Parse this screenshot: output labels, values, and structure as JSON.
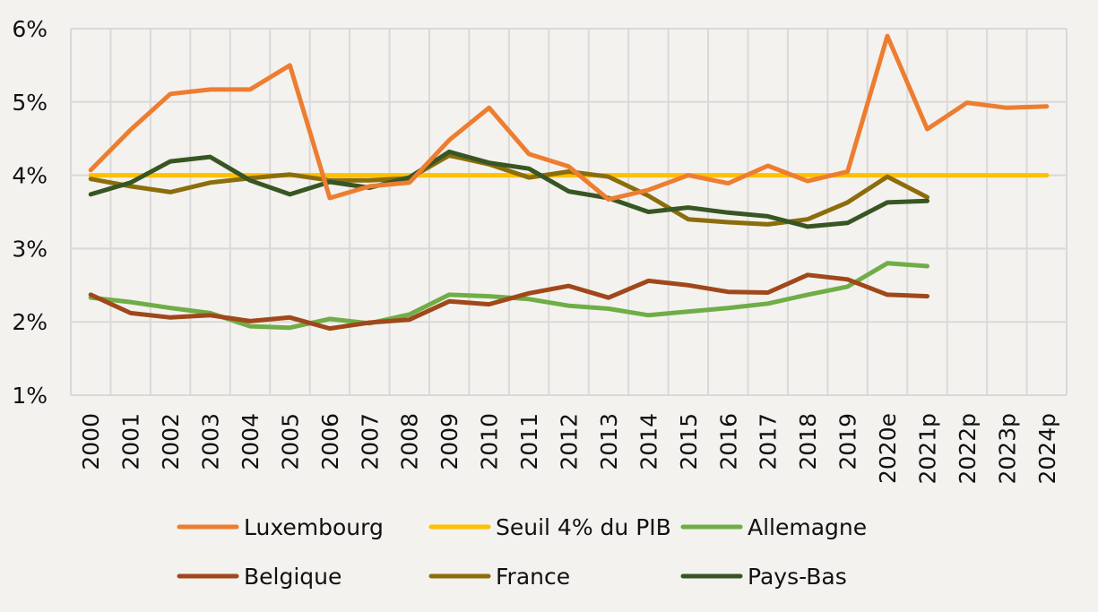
{
  "chart_data": {
    "type": "line",
    "title": "",
    "xlabel": "",
    "ylabel": "",
    "categories": [
      "2000",
      "2001",
      "2002",
      "2003",
      "2004",
      "2005",
      "2006",
      "2007",
      "2008",
      "2009",
      "2010",
      "2011",
      "2012",
      "2013",
      "2014",
      "2015",
      "2016",
      "2017",
      "2018",
      "2019",
      "2020e",
      "2021p",
      "2022p",
      "2023p",
      "2024p"
    ],
    "y_tick_labels": [
      "1%",
      "2%",
      "3%",
      "4%",
      "5%",
      "6%"
    ],
    "ylim": [
      1,
      6
    ],
    "grid": true,
    "legend_position": "bottom",
    "series": [
      {
        "name": "Luxembourg",
        "color": "#ed7d31",
        "values": [
          4.07,
          4.62,
          5.11,
          5.17,
          5.17,
          5.5,
          3.69,
          3.85,
          3.9,
          4.48,
          4.92,
          4.29,
          4.12,
          3.67,
          3.8,
          4.0,
          3.89,
          4.13,
          3.92,
          4.05,
          5.9,
          4.63,
          4.99,
          4.92,
          4.94
        ]
      },
      {
        "name": "Seuil 4% du PIB",
        "color": "#ffc000",
        "values": [
          4,
          4,
          4,
          4,
          4,
          4,
          4,
          4,
          4,
          4,
          4,
          4,
          4,
          4,
          4,
          4,
          4,
          4,
          4,
          4,
          4,
          4,
          4,
          4,
          4
        ]
      },
      {
        "name": "Allemagne",
        "color": "#70ad47",
        "values": [
          2.33,
          2.27,
          2.19,
          2.12,
          1.94,
          1.92,
          2.04,
          1.98,
          2.1,
          2.37,
          2.35,
          2.31,
          2.22,
          2.18,
          2.09,
          2.14,
          2.19,
          2.25,
          2.37,
          2.48,
          2.8,
          2.76,
          null,
          null,
          null
        ]
      },
      {
        "name": "Belgique",
        "color": "#a0481b",
        "values": [
          2.37,
          2.12,
          2.06,
          2.09,
          2.01,
          2.06,
          1.91,
          1.99,
          2.03,
          2.28,
          2.24,
          2.39,
          2.49,
          2.33,
          2.56,
          2.5,
          2.41,
          2.4,
          2.64,
          2.58,
          2.37,
          2.35,
          null,
          null,
          null
        ]
      },
      {
        "name": "France",
        "color": "#8c6d0c",
        "values": [
          3.95,
          3.85,
          3.77,
          3.9,
          3.96,
          4.01,
          3.93,
          3.93,
          3.96,
          4.27,
          4.15,
          3.97,
          4.05,
          3.98,
          3.72,
          3.4,
          3.36,
          3.33,
          3.4,
          3.63,
          3.98,
          3.7,
          null,
          null,
          null
        ]
      },
      {
        "name": "Pays-Bas",
        "color": "#375623",
        "values": [
          3.74,
          3.9,
          4.19,
          4.25,
          3.93,
          3.74,
          3.91,
          3.83,
          3.97,
          4.32,
          4.17,
          4.09,
          3.78,
          3.69,
          3.5,
          3.56,
          3.49,
          3.44,
          3.3,
          3.35,
          3.63,
          3.65,
          null,
          null,
          null
        ]
      }
    ]
  }
}
